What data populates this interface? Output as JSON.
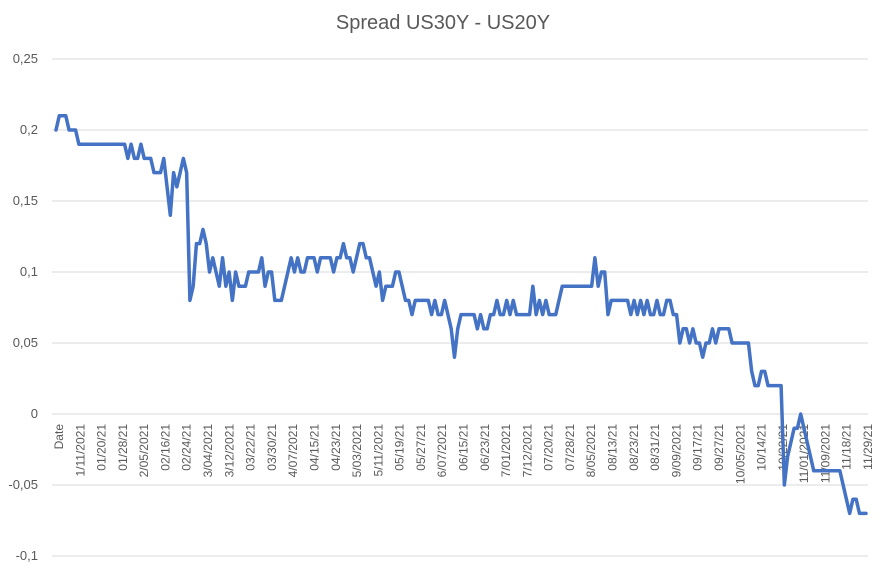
{
  "chart_data": {
    "type": "line",
    "title": "Spread US30Y - US20Y",
    "xlabel": "",
    "ylabel": "",
    "ylim": [
      -0.1,
      0.25
    ],
    "yticks": [
      0.25,
      0.2,
      0.15,
      0.1,
      0.05,
      0,
      -0.05,
      -0.1
    ],
    "ytick_labels": [
      "0,25",
      "0,2",
      "0,15",
      "0,1",
      "0,05",
      "0",
      "-0,05",
      "-0,1"
    ],
    "grid": "horizontal",
    "legend": "none",
    "series_color": "#4472c4",
    "x_tick_labels": [
      "Date",
      "1/11/2021",
      "01/20/21",
      "01/28/21",
      "2/05/2021",
      "02/16/21",
      "02/24/21",
      "3/04/2021",
      "3/12/2021",
      "03/22/21",
      "03/30/21",
      "4/07/2021",
      "04/15/21",
      "04/23/21",
      "5/03/2021",
      "5/11/2021",
      "05/19/21",
      "05/27/21",
      "6/07/2021",
      "06/15/21",
      "06/23/21",
      "7/01/2021",
      "7/12/2021",
      "07/20/21",
      "07/28/21",
      "8/05/2021",
      "08/13/21",
      "08/23/21",
      "08/31/21",
      "9/09/2021",
      "09/17/21",
      "09/27/21",
      "10/05/2021",
      "10/14/21",
      "10/22/21",
      "11/01/2021",
      "11/09/2021",
      "11/18/21",
      "11/29/21"
    ],
    "values": [
      0.2,
      0.21,
      0.21,
      0.21,
      0.2,
      0.2,
      0.2,
      0.19,
      0.19,
      0.19,
      0.19,
      0.19,
      0.19,
      0.19,
      0.19,
      0.19,
      0.19,
      0.19,
      0.19,
      0.19,
      0.19,
      0.19,
      0.18,
      0.19,
      0.18,
      0.18,
      0.19,
      0.18,
      0.18,
      0.18,
      0.17,
      0.17,
      0.17,
      0.18,
      0.16,
      0.14,
      0.17,
      0.16,
      0.17,
      0.18,
      0.17,
      0.08,
      0.09,
      0.12,
      0.12,
      0.13,
      0.12,
      0.1,
      0.11,
      0.1,
      0.09,
      0.11,
      0.09,
      0.1,
      0.08,
      0.1,
      0.09,
      0.09,
      0.09,
      0.1,
      0.1,
      0.1,
      0.1,
      0.11,
      0.09,
      0.1,
      0.1,
      0.08,
      0.08,
      0.08,
      0.09,
      0.1,
      0.11,
      0.1,
      0.11,
      0.1,
      0.1,
      0.11,
      0.11,
      0.11,
      0.1,
      0.11,
      0.11,
      0.11,
      0.11,
      0.1,
      0.11,
      0.11,
      0.12,
      0.11,
      0.11,
      0.1,
      0.11,
      0.12,
      0.12,
      0.11,
      0.11,
      0.1,
      0.09,
      0.1,
      0.08,
      0.09,
      0.09,
      0.09,
      0.1,
      0.1,
      0.09,
      0.08,
      0.08,
      0.07,
      0.08,
      0.08,
      0.08,
      0.08,
      0.08,
      0.07,
      0.08,
      0.07,
      0.07,
      0.08,
      0.07,
      0.06,
      0.04,
      0.06,
      0.07,
      0.07,
      0.07,
      0.07,
      0.07,
      0.06,
      0.07,
      0.06,
      0.06,
      0.07,
      0.07,
      0.08,
      0.07,
      0.07,
      0.08,
      0.07,
      0.08,
      0.07,
      0.07,
      0.07,
      0.07,
      0.07,
      0.09,
      0.07,
      0.08,
      0.07,
      0.08,
      0.07,
      0.07,
      0.07,
      0.08,
      0.09,
      0.09,
      0.09,
      0.09,
      0.09,
      0.09,
      0.09,
      0.09,
      0.09,
      0.09,
      0.11,
      0.09,
      0.1,
      0.1,
      0.07,
      0.08,
      0.08,
      0.08,
      0.08,
      0.08,
      0.08,
      0.07,
      0.08,
      0.07,
      0.08,
      0.07,
      0.08,
      0.07,
      0.07,
      0.08,
      0.07,
      0.07,
      0.08,
      0.08,
      0.07,
      0.07,
      0.05,
      0.06,
      0.06,
      0.05,
      0.06,
      0.05,
      0.05,
      0.04,
      0.05,
      0.05,
      0.06,
      0.05,
      0.06,
      0.06,
      0.06,
      0.06,
      0.05,
      0.05,
      0.05,
      0.05,
      0.05,
      0.05,
      0.03,
      0.02,
      0.02,
      0.03,
      0.03,
      0.02,
      0.02,
      0.02,
      0.02,
      0.02,
      -0.05,
      -0.03,
      -0.02,
      -0.01,
      -0.01,
      0.0,
      -0.01,
      -0.02,
      -0.03,
      -0.04,
      -0.04,
      -0.04,
      -0.04,
      -0.04,
      -0.04,
      -0.04,
      -0.04,
      -0.04,
      -0.05,
      -0.06,
      -0.07,
      -0.06,
      -0.06,
      -0.07,
      -0.07,
      -0.07
    ]
  }
}
